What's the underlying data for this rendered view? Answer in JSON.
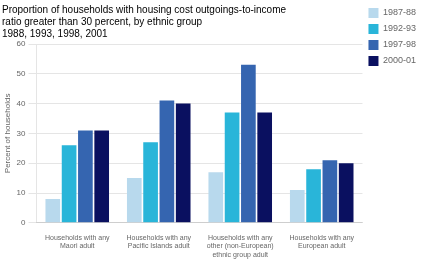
{
  "chart_data": {
    "type": "bar",
    "title": [
      "Proportion of households with housing cost outgoings-to-income",
      "ratio greater than 30 percent, by ethnic group",
      "1988, 1993, 1998, 2001"
    ],
    "ylabel": "Percent of households",
    "categories": [
      "Households with any\nMaori adult",
      "Households with any\nPacific Islands adult",
      "Households with any\nother (non-European)\nethnic group adult",
      "Households with any\nEuropean adult"
    ],
    "series": [
      {
        "name": "1987-88",
        "values": [
          8,
          15,
          17,
          11
        ],
        "color": "#b8d9ed"
      },
      {
        "name": "1992-93",
        "values": [
          26,
          27,
          37,
          18
        ],
        "color": "#29b5d9"
      },
      {
        "name": "1997-98",
        "values": [
          31,
          41,
          53,
          21
        ],
        "color": "#3565b0"
      },
      {
        "name": "2000-01",
        "values": [
          31,
          40,
          37,
          20
        ],
        "color": "#0a1060"
      }
    ],
    "ylim": [
      0,
      60
    ],
    "yticks": [
      0,
      10,
      20,
      30,
      40,
      50,
      60
    ],
    "grid": true,
    "legend": "right"
  }
}
